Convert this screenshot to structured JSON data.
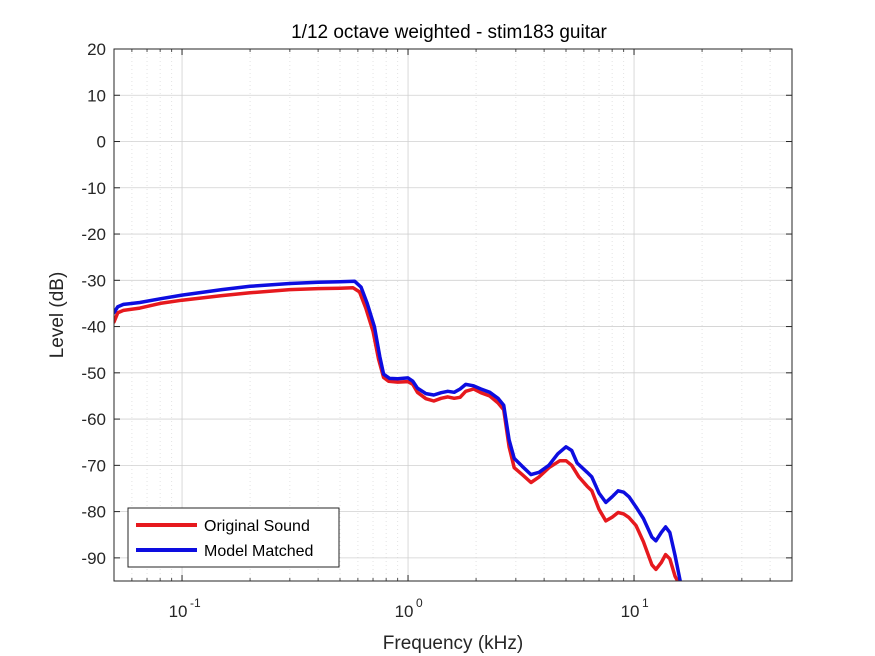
{
  "chart_data": {
    "type": "line",
    "title": "1/12 octave weighted - stim183 guitar",
    "xlabel": "Frequency (kHz)",
    "ylabel": "Level (dB)",
    "xscale": "log",
    "xlim": [
      0.05,
      50
    ],
    "ylim": [
      -95,
      20
    ],
    "xticks": [
      {
        "value": 0.1,
        "base": "10",
        "exp": "-1"
      },
      {
        "value": 1,
        "base": "10",
        "exp": "0"
      },
      {
        "value": 10,
        "base": "10",
        "exp": "1"
      }
    ],
    "yticks": [
      20,
      10,
      0,
      -10,
      -20,
      -30,
      -40,
      -50,
      -60,
      -70,
      -80,
      -90
    ],
    "grid": true,
    "minor_grid": true,
    "legend": {
      "position": "bottom-left"
    },
    "series": [
      {
        "name": "Original Sound",
        "color": "#e6191e",
        "points": [
          [
            0.05,
            -39
          ],
          [
            0.052,
            -37
          ],
          [
            0.055,
            -36.5
          ],
          [
            0.065,
            -36
          ],
          [
            0.08,
            -35
          ],
          [
            0.1,
            -34.3
          ],
          [
            0.15,
            -33.3
          ],
          [
            0.2,
            -32.7
          ],
          [
            0.3,
            -32
          ],
          [
            0.4,
            -31.8
          ],
          [
            0.5,
            -31.7
          ],
          [
            0.57,
            -31.6
          ],
          [
            0.61,
            -32.5
          ],
          [
            0.65,
            -36
          ],
          [
            0.7,
            -41
          ],
          [
            0.74,
            -47
          ],
          [
            0.78,
            -51
          ],
          [
            0.82,
            -51.8
          ],
          [
            0.9,
            -52
          ],
          [
            1.0,
            -51.9
          ],
          [
            1.05,
            -52.5
          ],
          [
            1.1,
            -54.2
          ],
          [
            1.2,
            -55.6
          ],
          [
            1.3,
            -56.1
          ],
          [
            1.4,
            -55.5
          ],
          [
            1.5,
            -55.2
          ],
          [
            1.6,
            -55.5
          ],
          [
            1.7,
            -55.3
          ],
          [
            1.8,
            -54
          ],
          [
            1.95,
            -53.5
          ],
          [
            2.1,
            -54.3
          ],
          [
            2.3,
            -55
          ],
          [
            2.5,
            -56.5
          ],
          [
            2.65,
            -58
          ],
          [
            2.8,
            -66
          ],
          [
            2.95,
            -70.5
          ],
          [
            3.2,
            -72
          ],
          [
            3.5,
            -73.7
          ],
          [
            3.8,
            -72.5
          ],
          [
            4.2,
            -70.5
          ],
          [
            4.7,
            -69
          ],
          [
            5.0,
            -69
          ],
          [
            5.3,
            -70
          ],
          [
            5.7,
            -72.5
          ],
          [
            6.2,
            -74.5
          ],
          [
            6.5,
            -75.5
          ],
          [
            7.0,
            -79.5
          ],
          [
            7.5,
            -82
          ],
          [
            8.0,
            -81.2
          ],
          [
            8.5,
            -80.2
          ],
          [
            9.0,
            -80.5
          ],
          [
            9.5,
            -81.3
          ],
          [
            10.2,
            -83
          ],
          [
            11.0,
            -86.5
          ],
          [
            12.0,
            -91.5
          ],
          [
            12.5,
            -92.5
          ],
          [
            13.2,
            -91
          ],
          [
            13.8,
            -89.3
          ],
          [
            14.4,
            -90.2
          ],
          [
            15.2,
            -94
          ],
          [
            15.6,
            -95
          ]
        ]
      },
      {
        "name": "Model Matched",
        "color": "#0d0de0",
        "points": [
          [
            0.05,
            -37
          ],
          [
            0.052,
            -35.7
          ],
          [
            0.055,
            -35.2
          ],
          [
            0.065,
            -34.8
          ],
          [
            0.08,
            -34
          ],
          [
            0.1,
            -33.2
          ],
          [
            0.15,
            -32
          ],
          [
            0.2,
            -31.3
          ],
          [
            0.3,
            -30.7
          ],
          [
            0.4,
            -30.4
          ],
          [
            0.5,
            -30.3
          ],
          [
            0.58,
            -30.2
          ],
          [
            0.62,
            -31.5
          ],
          [
            0.66,
            -35
          ],
          [
            0.71,
            -40
          ],
          [
            0.75,
            -46.5
          ],
          [
            0.78,
            -50.3
          ],
          [
            0.83,
            -51.2
          ],
          [
            0.9,
            -51.3
          ],
          [
            1.0,
            -51.1
          ],
          [
            1.05,
            -51.8
          ],
          [
            1.1,
            -53.3
          ],
          [
            1.2,
            -54.5
          ],
          [
            1.3,
            -54.8
          ],
          [
            1.4,
            -54.3
          ],
          [
            1.5,
            -54
          ],
          [
            1.6,
            -54.2
          ],
          [
            1.7,
            -53.5
          ],
          [
            1.8,
            -52.5
          ],
          [
            1.95,
            -52.8
          ],
          [
            2.1,
            -53.5
          ],
          [
            2.3,
            -54.2
          ],
          [
            2.5,
            -55.5
          ],
          [
            2.65,
            -57
          ],
          [
            2.8,
            -64.5
          ],
          [
            2.95,
            -68.5
          ],
          [
            3.2,
            -70.2
          ],
          [
            3.5,
            -72
          ],
          [
            3.8,
            -71.5
          ],
          [
            4.2,
            -70
          ],
          [
            4.6,
            -67.5
          ],
          [
            5.0,
            -66
          ],
          [
            5.3,
            -66.8
          ],
          [
            5.6,
            -69.5
          ],
          [
            6.2,
            -71.5
          ],
          [
            6.5,
            -72.5
          ],
          [
            7.0,
            -76
          ],
          [
            7.5,
            -78
          ],
          [
            8.0,
            -76.8
          ],
          [
            8.5,
            -75.5
          ],
          [
            9.0,
            -75.8
          ],
          [
            9.5,
            -76.8
          ],
          [
            10.2,
            -79
          ],
          [
            11.0,
            -81.5
          ],
          [
            12.0,
            -85.5
          ],
          [
            12.5,
            -86.3
          ],
          [
            13.2,
            -84.5
          ],
          [
            13.8,
            -83.3
          ],
          [
            14.4,
            -84.5
          ],
          [
            15.2,
            -89.5
          ],
          [
            16.0,
            -95
          ]
        ]
      }
    ]
  }
}
